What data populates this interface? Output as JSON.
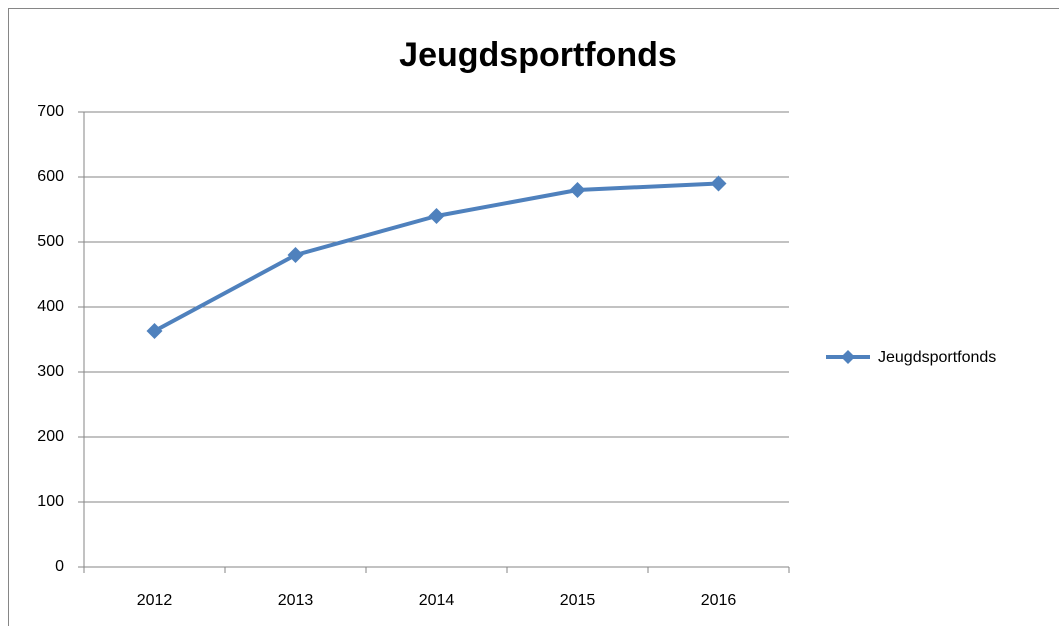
{
  "chart_data": {
    "type": "line",
    "title": "Jeugdsportfonds",
    "categories": [
      "2012",
      "2013",
      "2014",
      "2015",
      "2016"
    ],
    "series": [
      {
        "name": "Jeugdsportfonds",
        "color": "#4f81bd",
        "values": [
          363,
          480,
          540,
          580,
          590
        ]
      }
    ],
    "ylim": [
      0,
      700
    ],
    "yticks": [
      0,
      100,
      200,
      300,
      400,
      500,
      600,
      700
    ],
    "grid": true,
    "legend": "right"
  }
}
